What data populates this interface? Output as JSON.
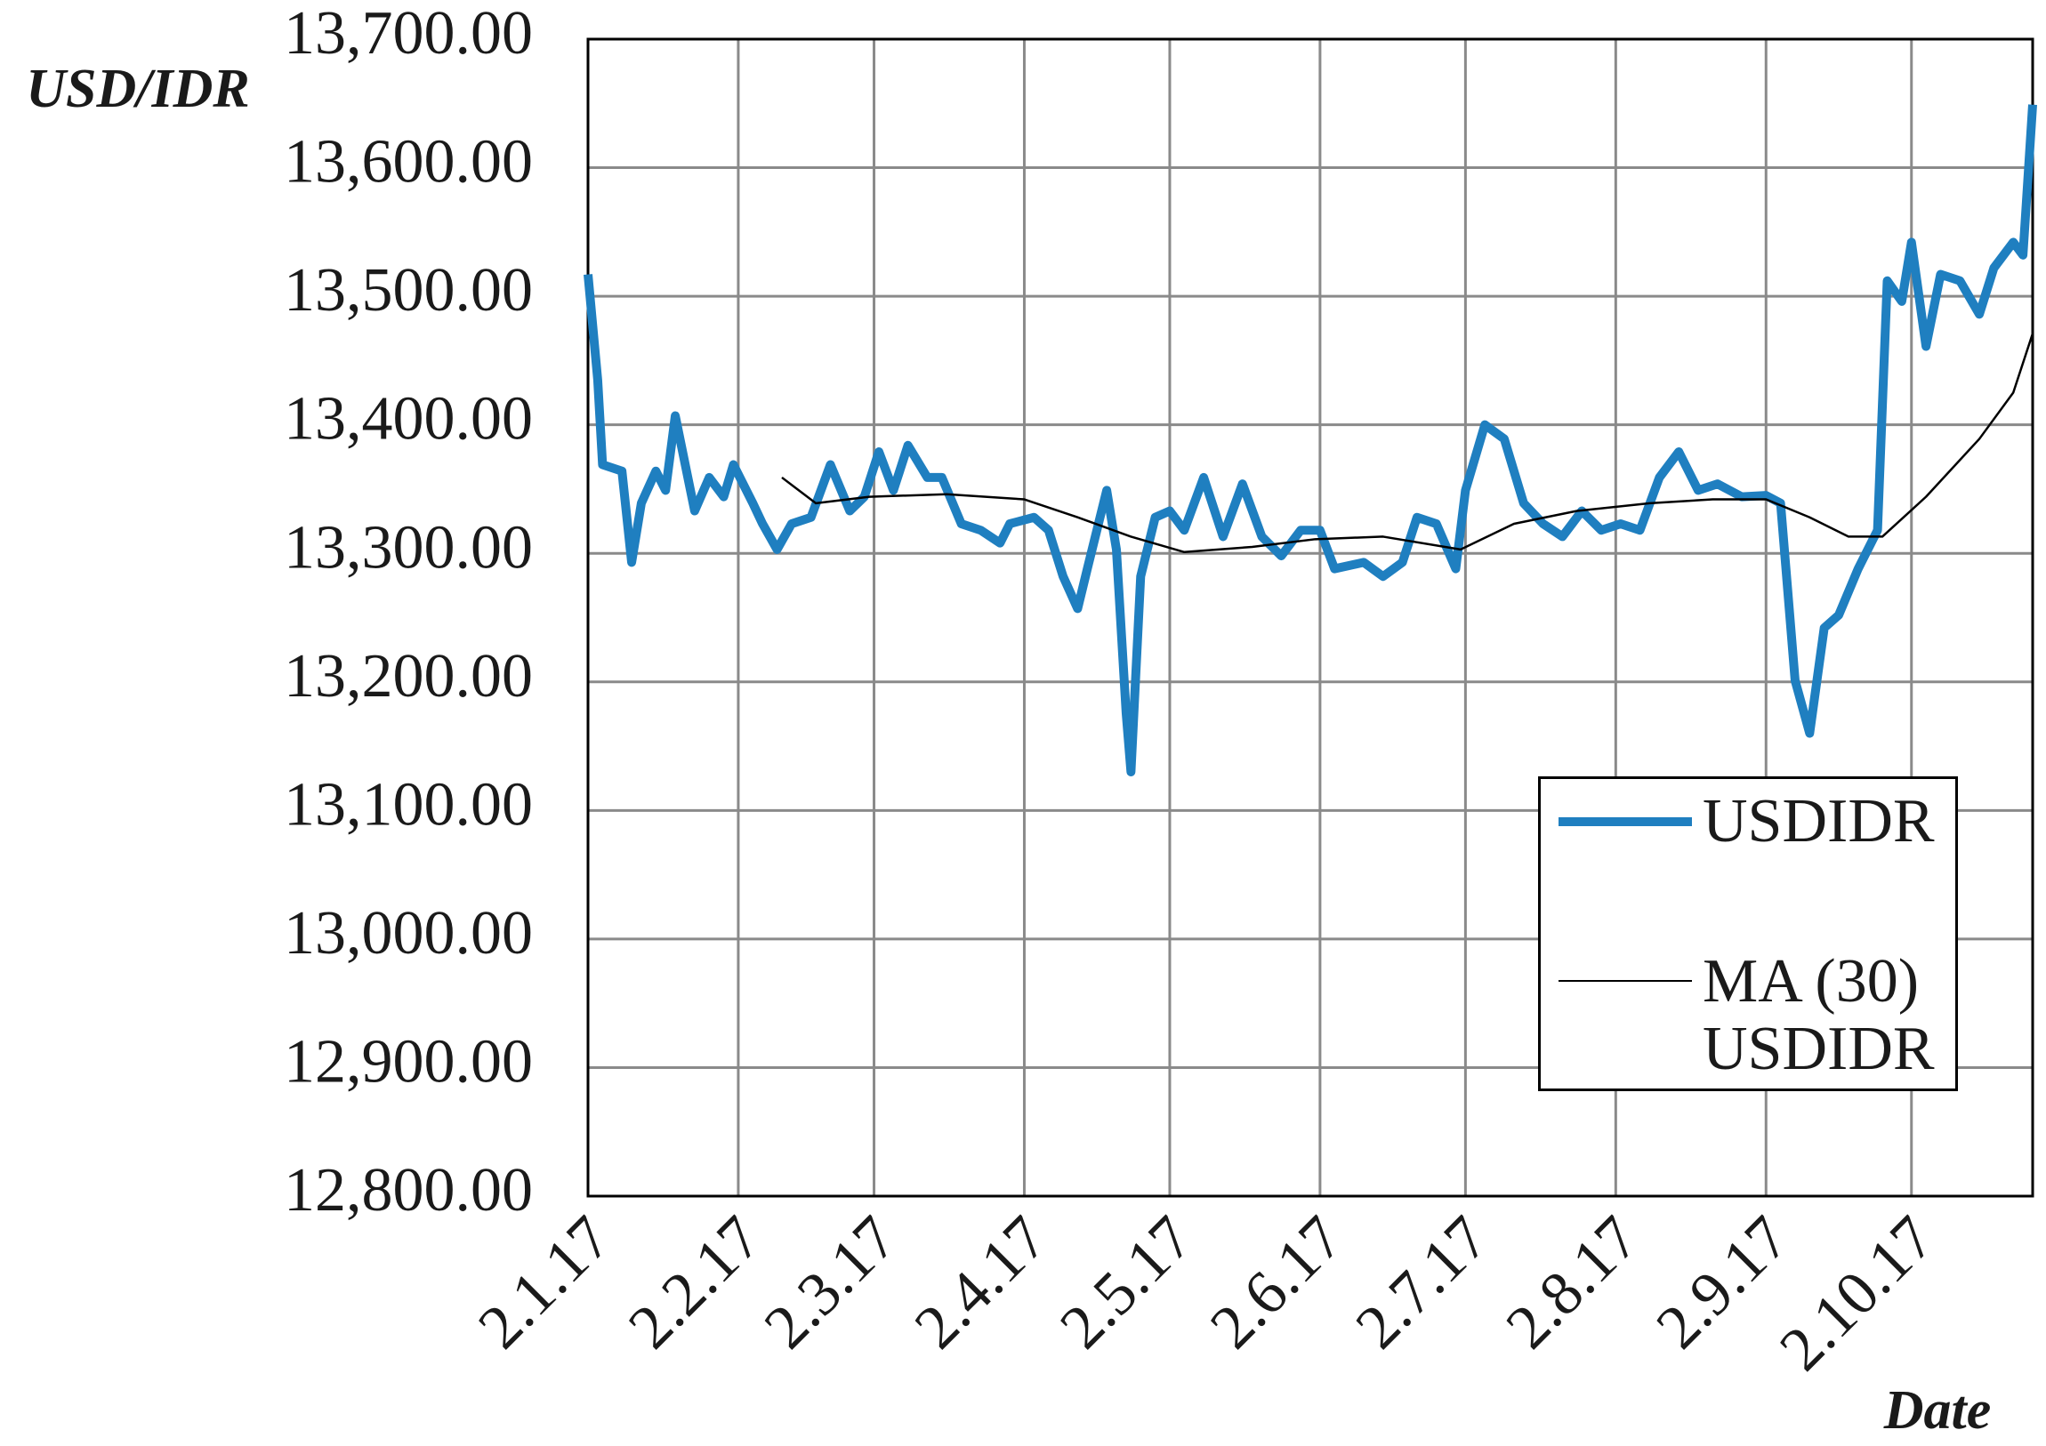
{
  "chart_data": {
    "type": "line",
    "x_label": "Date",
    "y_label": "USD/IDR",
    "xlim": [
      "2017-01-02",
      "2017-10-27"
    ],
    "xticks": [
      {
        "value": "2017-01-02",
        "label": "2.1.17"
      },
      {
        "value": "2017-02-02",
        "label": "2.2.17"
      },
      {
        "value": "2017-03-02",
        "label": "2.3.17"
      },
      {
        "value": "2017-04-02",
        "label": "2.4.17"
      },
      {
        "value": "2017-05-02",
        "label": "2.5.17"
      },
      {
        "value": "2017-06-02",
        "label": "2.6.17"
      },
      {
        "value": "2017-07-02",
        "label": "2.7.17"
      },
      {
        "value": "2017-08-02",
        "label": "2.8.17"
      },
      {
        "value": "2017-09-02",
        "label": "2.9.17"
      },
      {
        "value": "2017-10-02",
        "label": "2.10.17"
      }
    ],
    "ylim": [
      12800,
      13700
    ],
    "yticks": [
      {
        "value": 12800,
        "label": "12,800.00"
      },
      {
        "value": 12900,
        "label": "12,900.00"
      },
      {
        "value": 13000,
        "label": "13,000.00"
      },
      {
        "value": 13100,
        "label": "13,100.00"
      },
      {
        "value": 13200,
        "label": "13,200.00"
      },
      {
        "value": 13300,
        "label": "13,300.00"
      },
      {
        "value": 13400,
        "label": "13,400.00"
      },
      {
        "value": 13500,
        "label": "13,500.00"
      },
      {
        "value": 13600,
        "label": "13,600.00"
      },
      {
        "value": 13700,
        "label": "13,700.00"
      }
    ],
    "grid": true,
    "legend_position": "lower right",
    "series": [
      {
        "name": "USDIDR",
        "color": "#1f7fc0",
        "x": [
          "2017-01-02",
          "2017-01-04",
          "2017-01-05",
          "2017-01-09",
          "2017-01-11",
          "2017-01-13",
          "2017-01-16",
          "2017-01-18",
          "2017-01-20",
          "2017-01-24",
          "2017-01-27",
          "2017-01-30",
          "2017-02-01",
          "2017-02-05",
          "2017-02-07",
          "2017-02-10",
          "2017-02-13",
          "2017-02-17",
          "2017-02-21",
          "2017-02-25",
          "2017-02-28",
          "2017-03-03",
          "2017-03-06",
          "2017-03-09",
          "2017-03-13",
          "2017-03-16",
          "2017-03-20",
          "2017-03-24",
          "2017-03-28",
          "2017-03-30",
          "2017-04-04",
          "2017-04-07",
          "2017-04-10",
          "2017-04-13",
          "2017-04-15",
          "2017-04-19",
          "2017-04-21",
          "2017-04-23",
          "2017-04-24",
          "2017-04-26",
          "2017-04-29",
          "2017-05-02",
          "2017-05-05",
          "2017-05-09",
          "2017-05-13",
          "2017-05-17",
          "2017-05-21",
          "2017-05-25",
          "2017-05-29",
          "2017-06-02",
          "2017-06-05",
          "2017-06-11",
          "2017-06-15",
          "2017-06-19",
          "2017-06-22",
          "2017-06-26",
          "2017-06-30",
          "2017-07-02",
          "2017-07-06",
          "2017-07-10",
          "2017-07-14",
          "2017-07-18",
          "2017-07-22",
          "2017-07-26",
          "2017-07-30",
          "2017-08-03",
          "2017-08-07",
          "2017-08-11",
          "2017-08-15",
          "2017-08-19",
          "2017-08-23",
          "2017-08-28",
          "2017-09-02",
          "2017-09-05",
          "2017-09-08",
          "2017-09-11",
          "2017-09-14",
          "2017-09-17",
          "2017-09-21",
          "2017-09-25",
          "2017-09-27",
          "2017-09-30",
          "2017-10-02",
          "2017-10-05",
          "2017-10-08",
          "2017-10-12",
          "2017-10-16",
          "2017-10-19",
          "2017-10-23",
          "2017-10-25",
          "2017-10-27"
        ],
        "values": [
          13517,
          13435,
          13369,
          13364,
          13293,
          13339,
          13364,
          13349,
          13407,
          13333,
          13359,
          13344,
          13369,
          13339,
          13323,
          13303,
          13323,
          13328,
          13369,
          13333,
          13344,
          13379,
          13349,
          13384,
          13359,
          13359,
          13323,
          13318,
          13308,
          13323,
          13328,
          13318,
          13282,
          13257,
          13288,
          13349,
          13303,
          13176,
          13130,
          13282,
          13328,
          13333,
          13318,
          13359,
          13313,
          13354,
          13313,
          13298,
          13318,
          13318,
          13288,
          13293,
          13282,
          13293,
          13328,
          13323,
          13288,
          13349,
          13400,
          13389,
          13339,
          13323,
          13313,
          13333,
          13318,
          13323,
          13318,
          13359,
          13379,
          13349,
          13354,
          13344,
          13345,
          13339,
          13201,
          13160,
          13242,
          13252,
          13288,
          13318,
          13512,
          13496,
          13542,
          13461,
          13517,
          13512,
          13486,
          13522,
          13542,
          13532,
          13649
        ]
      },
      {
        "name": "MA (30) USDIDR",
        "color": "#000000",
        "x": [
          "2017-02-11",
          "2017-02-18",
          "2017-03-01",
          "2017-03-17",
          "2017-04-02",
          "2017-04-13",
          "2017-04-24",
          "2017-05-05",
          "2017-05-19",
          "2017-06-01",
          "2017-06-15",
          "2017-07-01",
          "2017-07-12",
          "2017-07-25",
          "2017-08-09",
          "2017-08-22",
          "2017-09-02",
          "2017-09-11",
          "2017-09-19",
          "2017-09-26",
          "2017-10-05",
          "2017-10-16",
          "2017-10-23",
          "2017-10-27"
        ],
        "values": [
          13359,
          13339,
          13344,
          13346,
          13342,
          13328,
          13313,
          13301,
          13305,
          13311,
          13313,
          13303,
          13323,
          13333,
          13339,
          13342,
          13342,
          13328,
          13313,
          13313,
          13344,
          13389,
          13425,
          13471
        ]
      }
    ]
  }
}
